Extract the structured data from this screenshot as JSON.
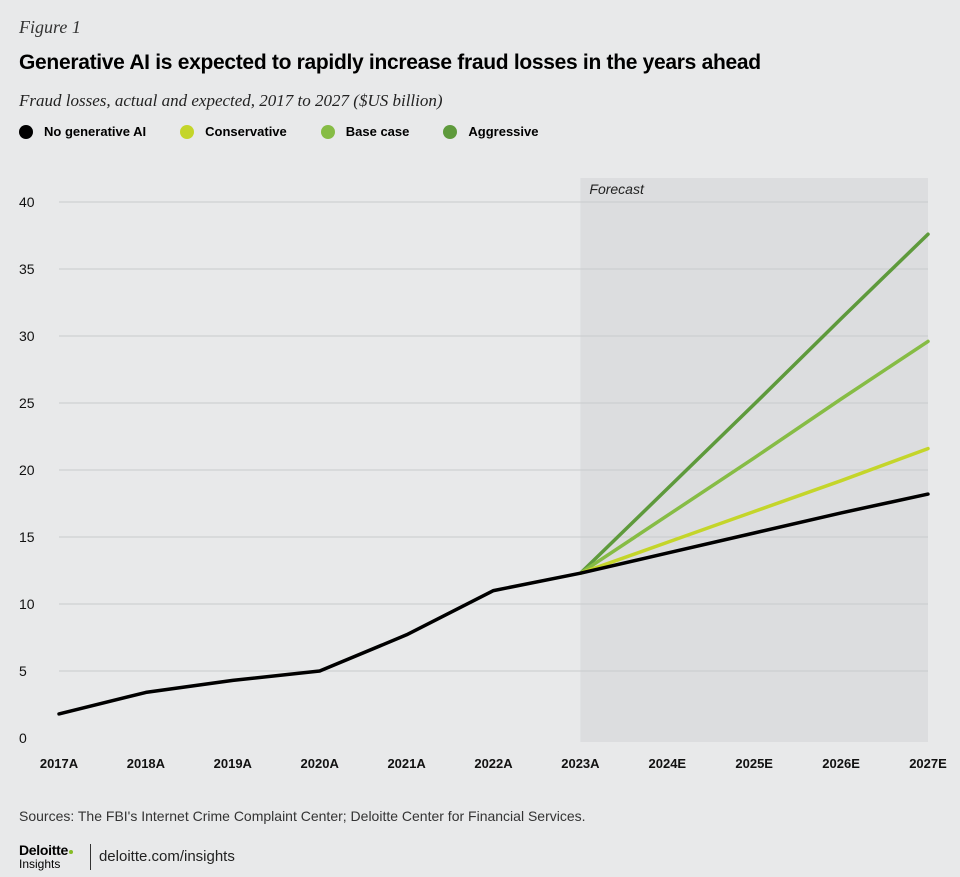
{
  "header": {
    "figure_label": "Figure 1",
    "title": "Generative AI is expected to rapidly increase fraud losses in the years ahead",
    "subtitle": "Fraud losses, actual and expected, 2017 to 2027 ($US billion)"
  },
  "legend": [
    {
      "name": "No generative AI",
      "color": "#000000"
    },
    {
      "name": "Conservative",
      "color": "#c4d52a"
    },
    {
      "name": "Base case",
      "color": "#86bc45"
    },
    {
      "name": "Aggressive",
      "color": "#5e9a3c"
    }
  ],
  "chart_data": {
    "type": "line",
    "x": [
      "2017A",
      "2018A",
      "2019A",
      "2020A",
      "2021A",
      "2022A",
      "2023A",
      "2024E",
      "2025E",
      "2026E",
      "2027E"
    ],
    "yticks": [
      0,
      5,
      10,
      15,
      20,
      25,
      30,
      35,
      40
    ],
    "ylim": [
      0,
      40
    ],
    "grid": true,
    "forecast_region": {
      "label": "Forecast",
      "start": "2023A",
      "end": "2027E"
    },
    "series": [
      {
        "name": "No generative AI",
        "color": "#000000",
        "values": [
          1.8,
          3.4,
          4.3,
          5.0,
          7.7,
          11.0,
          12.3,
          13.8,
          15.3,
          16.8,
          18.2
        ]
      },
      {
        "name": "Conservative",
        "color": "#c4d52a",
        "values": [
          null,
          null,
          null,
          null,
          null,
          null,
          12.3,
          14.6,
          16.9,
          19.2,
          21.6
        ]
      },
      {
        "name": "Base case",
        "color": "#86bc45",
        "values": [
          null,
          null,
          null,
          null,
          null,
          null,
          12.3,
          16.6,
          20.9,
          25.3,
          29.6
        ]
      },
      {
        "name": "Aggressive",
        "color": "#5e9a3c",
        "values": [
          null,
          null,
          null,
          null,
          null,
          null,
          12.3,
          18.6,
          24.9,
          31.3,
          37.6
        ]
      }
    ]
  },
  "footer": {
    "source": "Sources: The FBI's Internet Crime Complaint Center; Deloitte Center for Financial Services.",
    "brand_name": "Deloitte",
    "brand_sub": "Insights",
    "url": "deloitte.com/insights"
  }
}
